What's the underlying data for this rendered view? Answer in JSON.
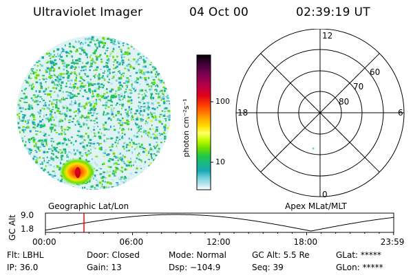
{
  "header": {
    "instrument": "Ultraviolet Imager",
    "date": "04 Oct 00",
    "time": "02:39:19 UT"
  },
  "colorbar": {
    "unit_label": "photon cm⁻²s⁻¹",
    "tick_100": "100",
    "tick_10": "10",
    "colors": [
      "#000000",
      "#3a0033",
      "#7a0055",
      "#b3004a",
      "#e0001c",
      "#ff3b00",
      "#ff7a00",
      "#ffb000",
      "#ffe000",
      "#ffff66",
      "#c8ff00",
      "#6fe000",
      "#22c84a",
      "#19b58a",
      "#1aa6b3",
      "#6fd0dc",
      "#b9e6ee",
      "#ffffff"
    ]
  },
  "polar": {
    "label_12": "12",
    "label_6": "6",
    "label_18": "18",
    "label_0": "0",
    "ring_60": "60",
    "ring_70": "70",
    "ring_80": "80"
  },
  "timeline": {
    "left_title": "Geographic Lat/Lon",
    "right_title": "Apex MLat/MLT",
    "y_axis_label": "GC Alt",
    "y_top": "9.0",
    "y_bottom": "1.8",
    "x_ticks": [
      "00:00",
      "06:00",
      "12:00",
      "18:00",
      "23:59"
    ],
    "marker_time_hours": 2.655,
    "marker_color": "#ff0000"
  },
  "status": {
    "filter": "Flt: LBHL",
    "ip": "IP: 36.0",
    "door": "Door: Closed",
    "gain": "Gain: 13",
    "mode": "Mode: Normal",
    "dsp": "Dsp: −104.9",
    "gc_alt": "GC Alt: 5.5 Re",
    "seq": "Seq: 39",
    "glat": "GLat: *****",
    "glon": "GLon: *****"
  }
}
